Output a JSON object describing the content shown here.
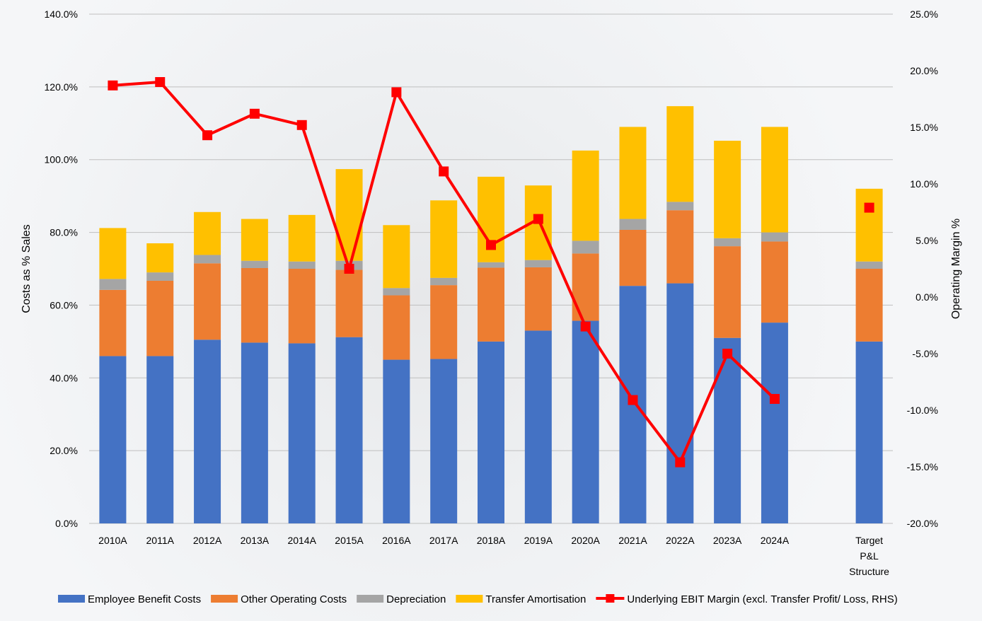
{
  "chart_data": {
    "type": "bar",
    "stacked": true,
    "categories": [
      "2010A",
      "2011A",
      "2012A",
      "2013A",
      "2014A",
      "2015A",
      "2016A",
      "2017A",
      "2018A",
      "2019A",
      "2020A",
      "2021A",
      "2022A",
      "2023A",
      "2024A",
      "Target P&L Structure"
    ],
    "series": [
      {
        "name": "Employee Benefit Costs",
        "axis": "left",
        "color": "#4472C4",
        "values": [
          46.0,
          46.0,
          50.5,
          49.7,
          49.5,
          51.2,
          45.0,
          45.2,
          50.0,
          53.0,
          55.7,
          65.3,
          66.0,
          51.0,
          55.2,
          50.0
        ]
      },
      {
        "name": "Other Operating Costs",
        "axis": "left",
        "color": "#ED7D31",
        "values": [
          18.2,
          20.7,
          21.0,
          20.5,
          20.5,
          18.5,
          17.7,
          20.3,
          20.3,
          17.4,
          18.5,
          15.4,
          20.1,
          25.2,
          22.3,
          20.0
        ]
      },
      {
        "name": "Depreciation",
        "axis": "left",
        "color": "#A5A5A5",
        "values": [
          3.0,
          2.3,
          2.3,
          2.0,
          2.0,
          2.5,
          2.0,
          2.0,
          1.5,
          2.0,
          3.5,
          3.0,
          2.3,
          2.2,
          2.5,
          2.0
        ]
      },
      {
        "name": "Transfer Amortisation",
        "axis": "left",
        "color": "#FFC000",
        "values": [
          14.0,
          8.0,
          11.8,
          11.5,
          12.8,
          25.2,
          17.3,
          21.3,
          23.5,
          20.5,
          24.8,
          25.3,
          26.3,
          26.8,
          29.0,
          20.0
        ]
      },
      {
        "name": "Underlying EBIT Margin (excl. Transfer Profit/ Loss, RHS)",
        "axis": "right",
        "type": "line",
        "color": "#FF0000",
        "values": [
          18.7,
          19.0,
          14.3,
          16.2,
          15.2,
          2.5,
          18.1,
          11.1,
          4.6,
          6.9,
          -2.6,
          -9.1,
          -14.6,
          -5.0,
          -9.0,
          7.9
        ]
      }
    ],
    "ylabel": "Costs as % Sales",
    "ylim": [
      0,
      140
    ],
    "yticks": [
      "0.0%",
      "20.0%",
      "40.0%",
      "60.0%",
      "80.0%",
      "100.0%",
      "120.0%",
      "140.0%"
    ],
    "y2label": "Operating Margin %",
    "y2lim": [
      -20,
      25
    ],
    "y2ticks": [
      "-20.0%",
      "-15.0%",
      "-10.0%",
      "-5.0%",
      "0.0%",
      "5.0%",
      "10.0%",
      "15.0%",
      "20.0%",
      "25.0%"
    ],
    "grid": true,
    "legend_position": "bottom"
  }
}
